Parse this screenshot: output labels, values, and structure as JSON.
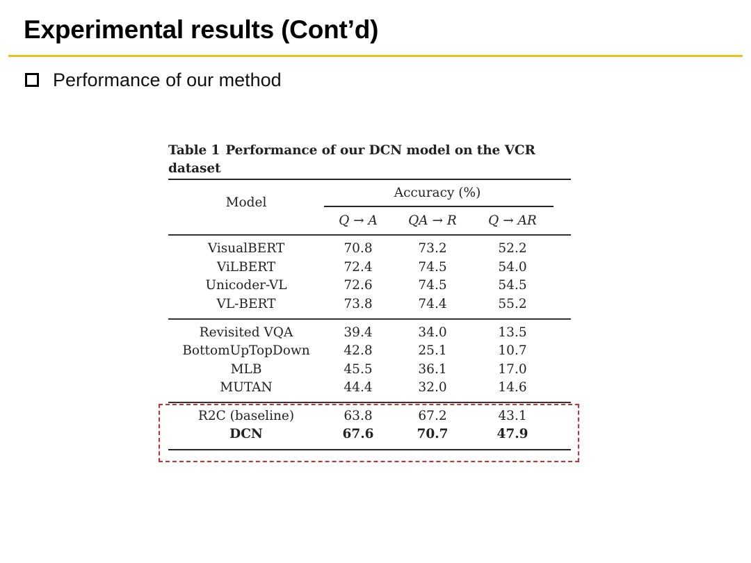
{
  "slide": {
    "title": "Experimental results (Cont’d)",
    "bullet": "Performance of our method",
    "accent_color": "#e8c218",
    "bullet_icon": "hollow-square-icon"
  },
  "table": {
    "caption_label": "Table 1",
    "caption_text": "Performance of our DCN model on the VCR dataset",
    "header": {
      "model": "Model",
      "group": "Accuracy (%)",
      "columns": [
        "Q → A",
        "QA → R",
        "Q → AR"
      ]
    },
    "groups": [
      {
        "rows": [
          {
            "model": "VisualBERT",
            "values": [
              "70.8",
              "73.2",
              "52.2"
            ]
          },
          {
            "model": "ViLBERT",
            "values": [
              "72.4",
              "74.5",
              "54.0"
            ]
          },
          {
            "model": "Unicoder-VL",
            "values": [
              "72.6",
              "74.5",
              "54.5"
            ]
          },
          {
            "model": "VL-BERT",
            "values": [
              "73.8",
              "74.4",
              "55.2"
            ]
          }
        ]
      },
      {
        "rows": [
          {
            "model": "Revisited VQA",
            "values": [
              "39.4",
              "34.0",
              "13.5"
            ]
          },
          {
            "model": "BottomUpTopDown",
            "values": [
              "42.8",
              "25.1",
              "10.7"
            ]
          },
          {
            "model": "MLB",
            "values": [
              "45.5",
              "36.1",
              "17.0"
            ]
          },
          {
            "model": "MUTAN",
            "values": [
              "44.4",
              "32.0",
              "14.6"
            ]
          }
        ]
      },
      {
        "rows": [
          {
            "model": "R2C (baseline)",
            "values": [
              "63.8",
              "67.2",
              "43.1"
            ]
          },
          {
            "model": "DCN",
            "values": [
              "67.6",
              "70.7",
              "47.9"
            ],
            "bold": true
          }
        ]
      }
    ],
    "highlight_color": "#d42a2a"
  }
}
